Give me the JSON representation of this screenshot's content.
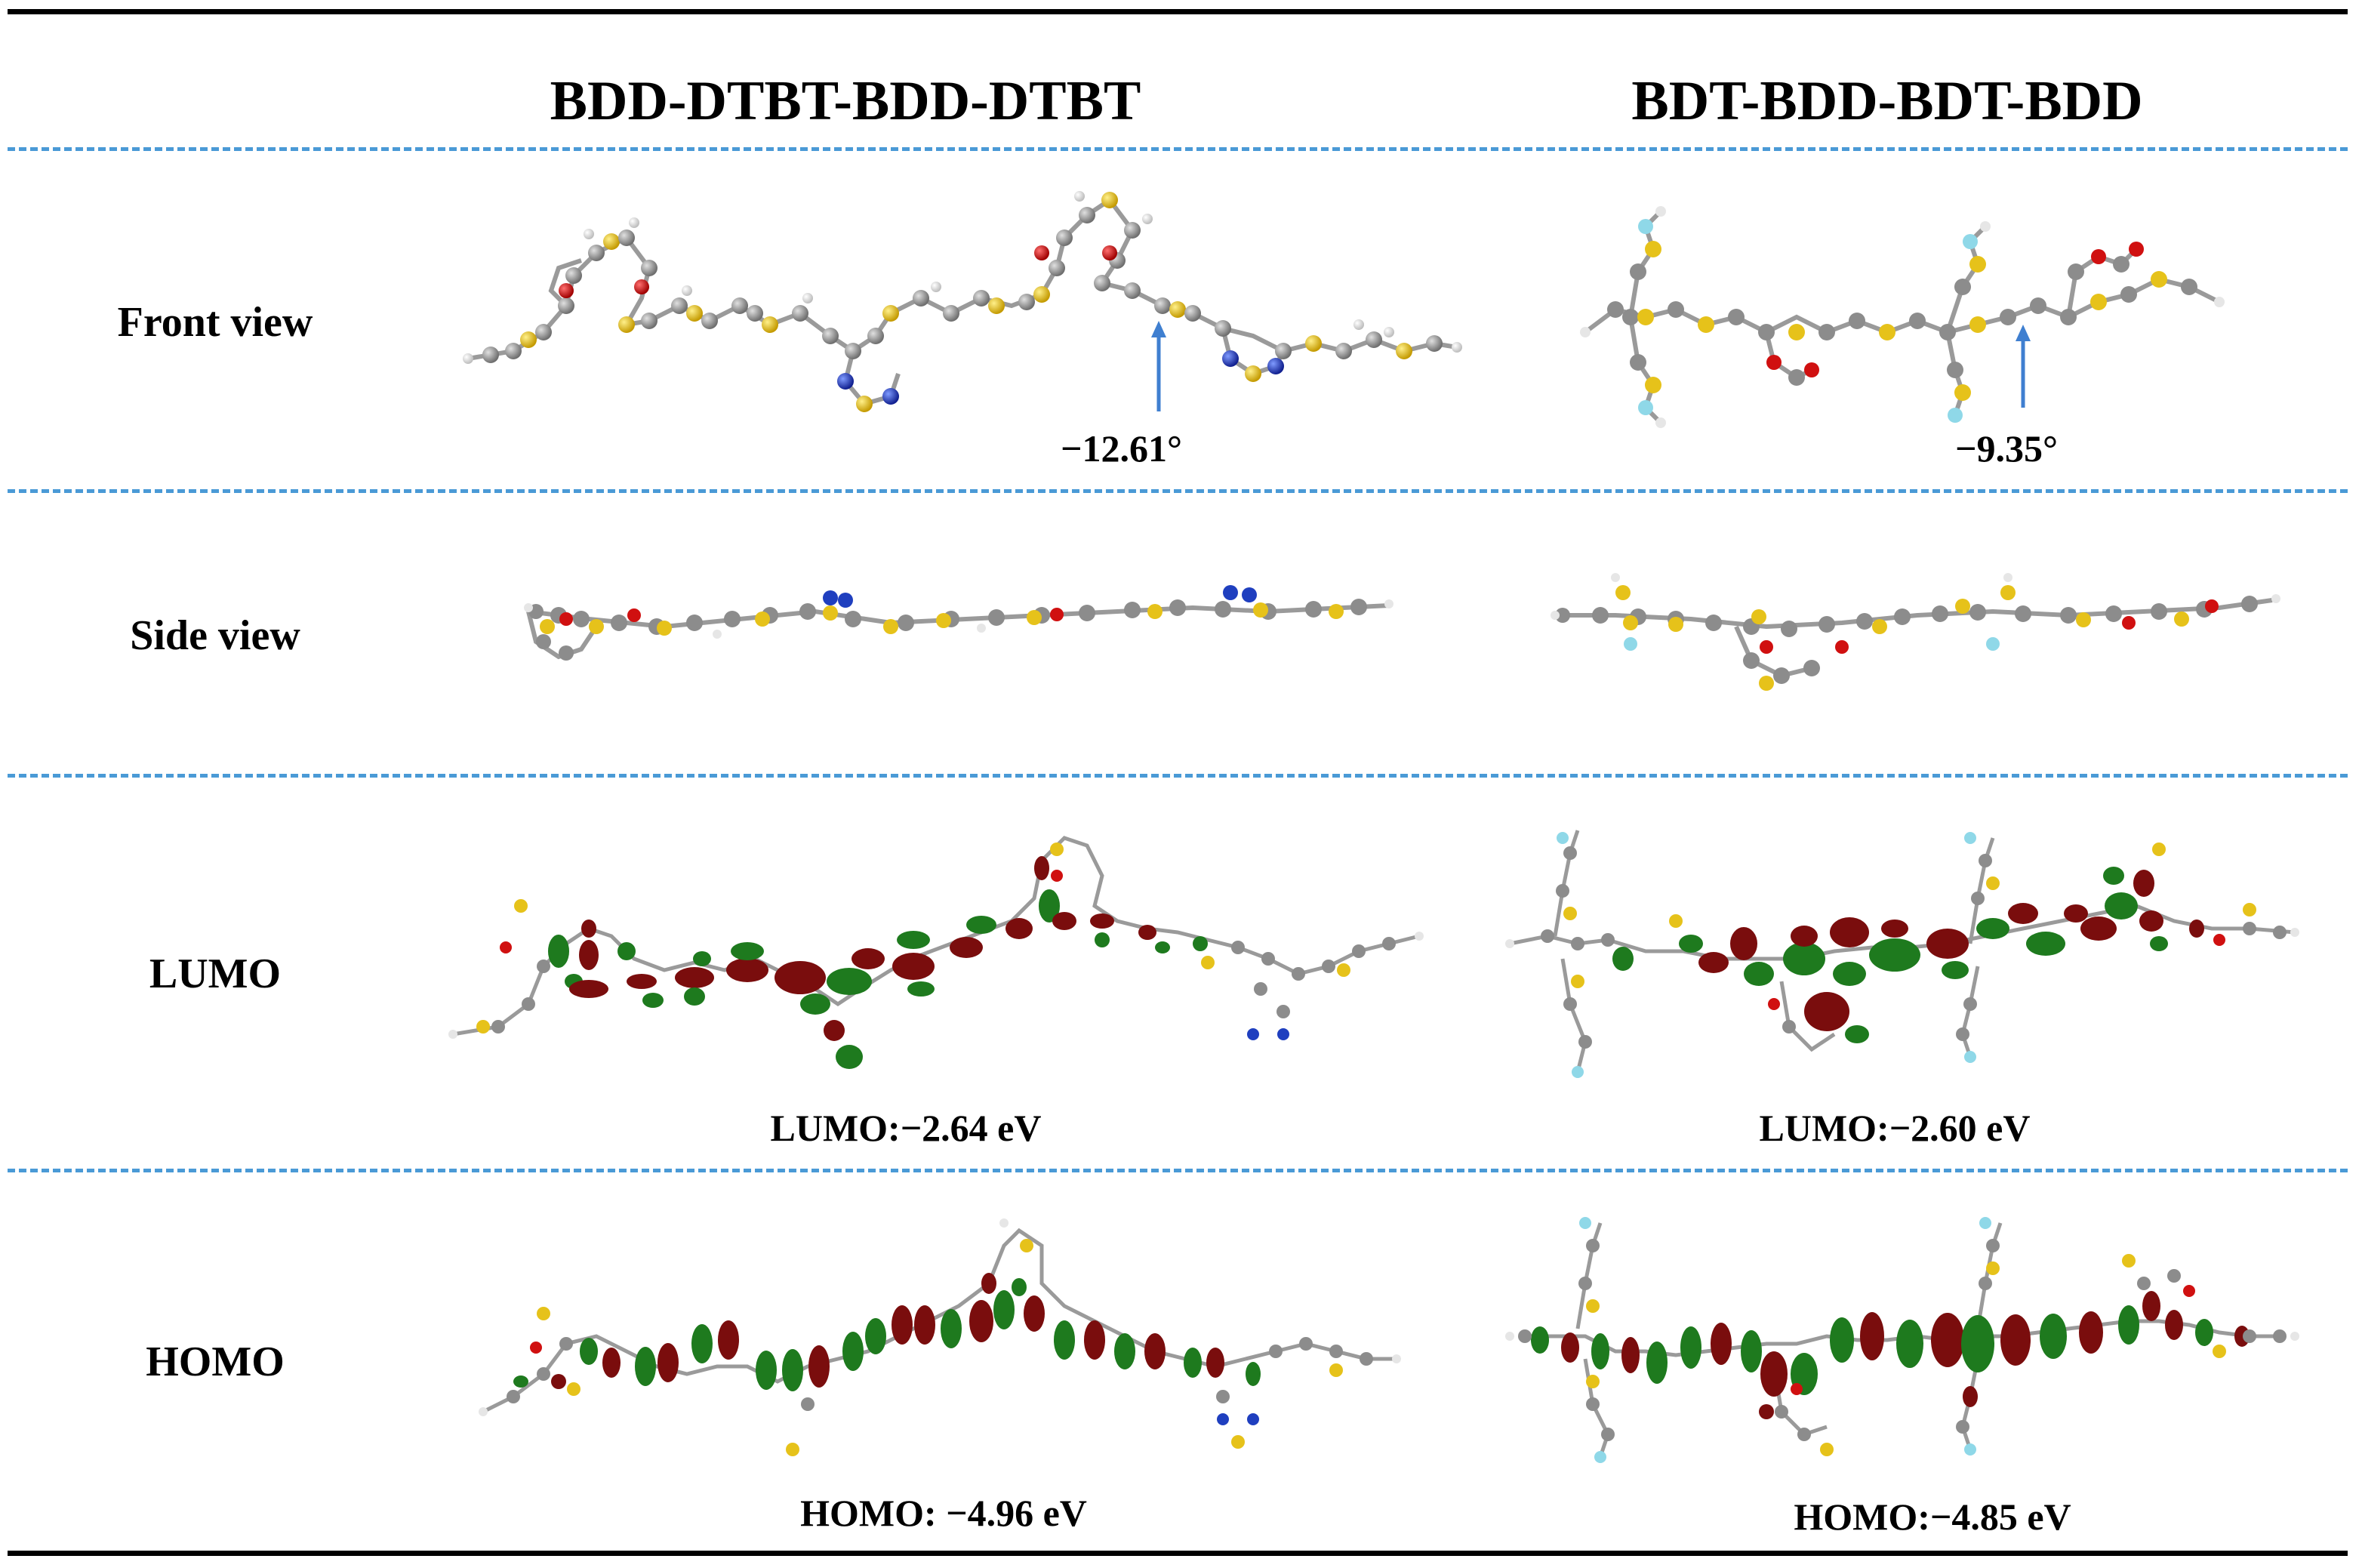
{
  "columns": {
    "left": "BDD-DTBT-BDD-DTBT",
    "right": "BDT-BDD-BDT-BDD"
  },
  "rows": {
    "front": "Front view",
    "side": "Side view",
    "lumo": "LUMO",
    "homo": "HOMO"
  },
  "dihedral": {
    "left": "−12.61°",
    "right": "−9.35°"
  },
  "energies": {
    "lumo_left": "LUMO:−2.64 eV",
    "lumo_right": "LUMO:−2.60 eV",
    "homo_left": "HOMO: −4.96 eV",
    "homo_right": "HOMO:−4.85 eV"
  },
  "colors": {
    "carbon": "#8c8c8c",
    "hydrogen": "#e6e6e6",
    "sulfur": "#e6c21a",
    "oxygen": "#d01010",
    "nitrogen": "#1f3fbf",
    "fluorine": "#8fd8e8",
    "orbital_positive": "#7a0d0d",
    "orbital_negative": "#1e7a1e",
    "arrow": "#3f7fd0",
    "divider": "#4a9ad6"
  }
}
